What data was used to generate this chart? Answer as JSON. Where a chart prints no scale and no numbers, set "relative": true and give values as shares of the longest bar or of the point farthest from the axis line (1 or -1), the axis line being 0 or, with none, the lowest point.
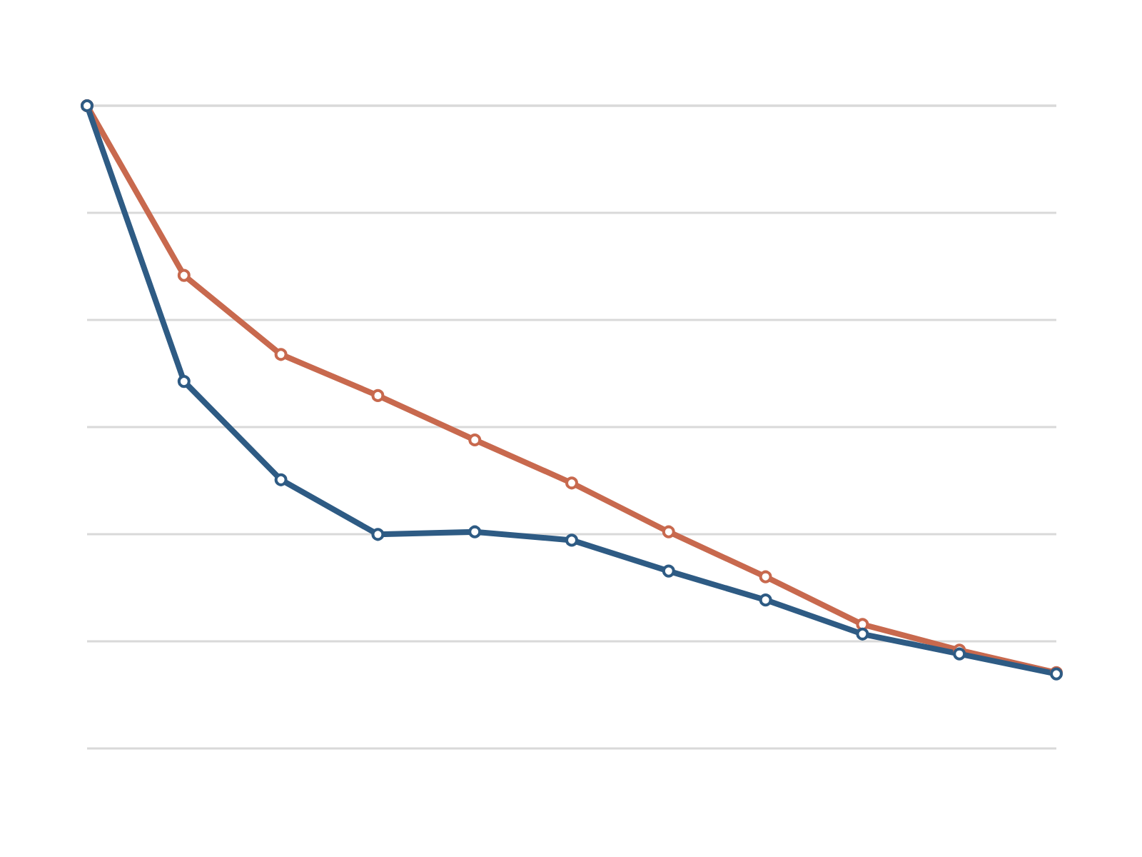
{
  "chart_data": {
    "type": "line",
    "relative": true,
    "categories": [
      null,
      null,
      null,
      null,
      null,
      null,
      null,
      null,
      null,
      null,
      null
    ],
    "grid": "y",
    "marker": "circle",
    "line_style": "solid",
    "series": [
      {
        "color": "#2e5b84",
        "values": [
          1,
          0.571,
          0.418,
          0.333,
          0.337,
          0.324,
          0.276,
          0.231,
          0.178,
          0.147,
          0.116
        ]
      },
      {
        "color": "#c8694e",
        "values": [
          1,
          0.736,
          0.613,
          0.549,
          0.48,
          0.413,
          0.337,
          0.267,
          0.193,
          0.153,
          0.118
        ]
      }
    ]
  }
}
